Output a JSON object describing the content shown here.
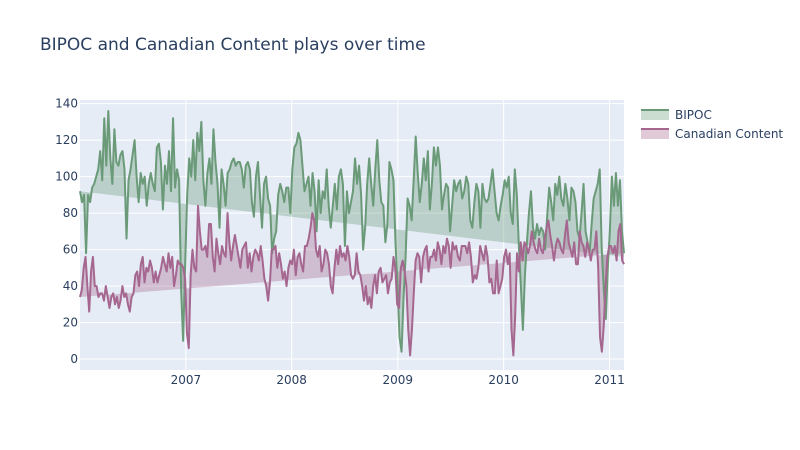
{
  "chart_data": {
    "type": "area",
    "title": "BIPOC and Canadian Content plays over time",
    "xlabel": "",
    "ylabel": "",
    "xlim": [
      "2006-01-01",
      "2011-02-20"
    ],
    "ylim": [
      -6,
      142
    ],
    "x_ticks": [
      "2007",
      "2008",
      "2009",
      "2010",
      "2011"
    ],
    "y_ticks": [
      0,
      20,
      40,
      60,
      80,
      100,
      120,
      140
    ],
    "grid": true,
    "legend_position": "top-right",
    "fill": "to trend line",
    "series": [
      {
        "name": "BIPOC",
        "color": "#6b9a79",
        "fill_color": "rgba(107,154,121,0.35)",
        "trend": [
          92,
          56
        ],
        "values": [
          92,
          86,
          90,
          58,
          90,
          86,
          94,
          96,
          100,
          104,
          114,
          98,
          132,
          106,
          136,
          110,
          96,
          126,
          108,
          106,
          112,
          114,
          104,
          66,
          98,
          104,
          112,
          120,
          100,
          86,
          102,
          96,
          100,
          84,
          96,
          102,
          96,
          92,
          116,
          118,
          108,
          82,
          106,
          96,
          114,
          92,
          132,
          94,
          104,
          98,
          38,
          10,
          52,
          90,
          110,
          100,
          120,
          98,
          124,
          114,
          130,
          98,
          84,
          102,
          110,
          96,
          126,
          108,
          96,
          72,
          104,
          96,
          84,
          102,
          104,
          108,
          110,
          106,
          108,
          108,
          104,
          94,
          106,
          108,
          104,
          86,
          78,
          100,
          108,
          90,
          72,
          96,
          100,
          88,
          84,
          58,
          66,
          70,
          90,
          96,
          92,
          86,
          94,
          94,
          80,
          104,
          116,
          118,
          124,
          120,
          106,
          92,
          96,
          100,
          84,
          102,
          92,
          70,
          98,
          80,
          92,
          88,
          104,
          84,
          72,
          84,
          96,
          82,
          100,
          104,
          96,
          62,
          92,
          80,
          86,
          92,
          110,
          96,
          106,
          90,
          60,
          72,
          96,
          110,
          96,
          84,
          104,
          120,
          98,
          86,
          84,
          64,
          74,
          108,
          104,
          98,
          64,
          40,
          12,
          4,
          34,
          56,
          88,
          84,
          76,
          98,
          122,
          102,
          86,
          96,
          110,
          98,
          114,
          82,
          96,
          116,
          106,
          116,
          106,
          82,
          90,
          96,
          94,
          70,
          84,
          98,
          92,
          96,
          98,
          88,
          92,
          100,
          96,
          76,
          72,
          86,
          96,
          92,
          72,
          96,
          88,
          86,
          88,
          96,
          104,
          92,
          80,
          76,
          84,
          90,
          98,
          94,
          100,
          80,
          74,
          104,
          90,
          62,
          40,
          16,
          46,
          64,
          80,
          92,
          72,
          66,
          74,
          68,
          72,
          70,
          60,
          78,
          94,
          86,
          76,
          96,
          90,
          100,
          88,
          84,
          96,
          88,
          76,
          94,
          92,
          86,
          70,
          66,
          80,
          96,
          70,
          64,
          58,
          74,
          88,
          92,
          96,
          104,
          60,
          38,
          22,
          50,
          70,
          100,
          84,
          102,
          84,
          98,
          70,
          58
        ]
      },
      {
        "name": "Canadian Content",
        "color": "#a5678f",
        "fill_color": "rgba(165,103,143,0.35)",
        "trend": [
          34,
          58
        ],
        "values": [
          34,
          38,
          50,
          56,
          40,
          26,
          48,
          56,
          40,
          40,
          34,
          36,
          36,
          32,
          40,
          34,
          28,
          34,
          36,
          30,
          34,
          28,
          32,
          40,
          34,
          36,
          30,
          26,
          34,
          36,
          46,
          48,
          40,
          52,
          56,
          42,
          50,
          48,
          54,
          50,
          42,
          48,
          42,
          46,
          50,
          56,
          52,
          48,
          58,
          50,
          56,
          40,
          46,
          54,
          52,
          52,
          50,
          44,
          14,
          6,
          46,
          60,
          50,
          48,
          84,
          70,
          60,
          60,
          62,
          56,
          74,
          74,
          56,
          48,
          66,
          58,
          52,
          62,
          58,
          56,
          80,
          64,
          54,
          62,
          68,
          62,
          56,
          50,
          60,
          62,
          64,
          50,
          58,
          48,
          56,
          60,
          58,
          54,
          62,
          54,
          44,
          40,
          32,
          42,
          60,
          60,
          62,
          50,
          58,
          52,
          44,
          48,
          40,
          50,
          54,
          52,
          60,
          46,
          56,
          58,
          52,
          48,
          62,
          62,
          66,
          72,
          80,
          76,
          60,
          56,
          62,
          48,
          52,
          60,
          58,
          52,
          40,
          36,
          50,
          60,
          52,
          62,
          56,
          58,
          54,
          62,
          56,
          46,
          44,
          46,
          58,
          48,
          46,
          40,
          32,
          40,
          30,
          34,
          28,
          40,
          46,
          36,
          48,
          50,
          42,
          44,
          46,
          36,
          42,
          44,
          56,
          50,
          30,
          28,
          50,
          54,
          48,
          40,
          16,
          2,
          16,
          36,
          54,
          58,
          56,
          42,
          56,
          60,
          62,
          48,
          56,
          56,
          60,
          54,
          64,
          60,
          52,
          62,
          58,
          66,
          62,
          50,
          64,
          60,
          62,
          56,
          54,
          62,
          62,
          62,
          58,
          64,
          56,
          42,
          46,
          44,
          50,
          62,
          58,
          54,
          62,
          56,
          42,
          44,
          36,
          36,
          54,
          36,
          40,
          44,
          56,
          60,
          52,
          58,
          16,
          2,
          24,
          58,
          48,
          64,
          54,
          64,
          62,
          58,
          62,
          70,
          64,
          60,
          58,
          66,
          60,
          58,
          66,
          72,
          76,
          68,
          62,
          54,
          62,
          66,
          64,
          60,
          58,
          68,
          76,
          64,
          60,
          56,
          64,
          52,
          52,
          70,
          64,
          62,
          56,
          64,
          60,
          54,
          60,
          60,
          70,
          50,
          12,
          4,
          18,
          40,
          56,
          62,
          62,
          58,
          62,
          54,
          70,
          74,
          54,
          52
        ]
      }
    ]
  }
}
